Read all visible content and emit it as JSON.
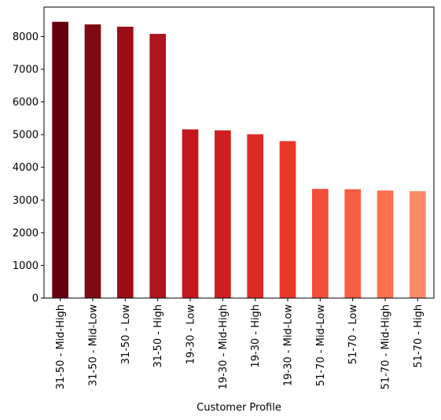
{
  "chart_data": {
    "type": "bar",
    "title": "",
    "xlabel": "Customer Profile",
    "ylabel": "",
    "ylim": [
      0,
      8900
    ],
    "yticks": [
      0,
      1000,
      2000,
      3000,
      4000,
      5000,
      6000,
      7000,
      8000
    ],
    "grid": false,
    "categories": [
      "31-50 - Mid-High",
      "31-50 - Mid-Low",
      "31-50 - Low",
      "31-50 - High",
      "19-30 - Low",
      "19-30 - Mid-High",
      "19-30 - High",
      "19-30 - Mid-Low",
      "51-70 - Mid-Low",
      "51-70 - Low",
      "51-70 - Mid-High",
      "51-70 - High"
    ],
    "values": [
      8450,
      8370,
      8300,
      8080,
      5160,
      5130,
      5010,
      4800,
      3340,
      3330,
      3290,
      3270
    ],
    "colors": [
      "#67000d",
      "#800a12",
      "#9a0f17",
      "#b0141c",
      "#c4161c",
      "#d01d1f",
      "#de2a25",
      "#ea372a",
      "#f44d38",
      "#f85d42",
      "#fc6f4f",
      "#fc8a6a"
    ]
  }
}
